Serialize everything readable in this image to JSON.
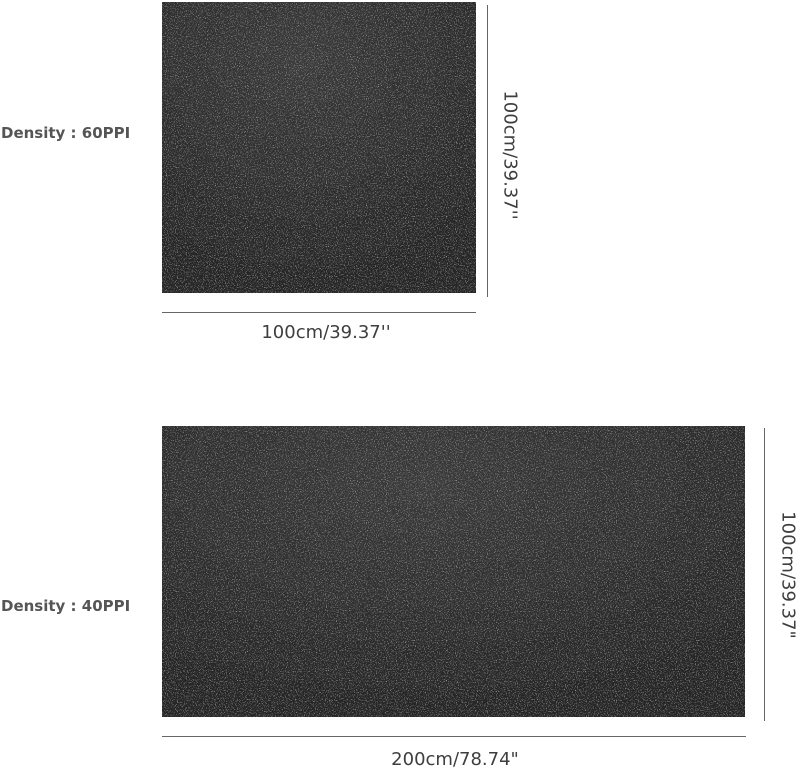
{
  "products": [
    {
      "density_label": "Density : 60PPI",
      "width_label": "100cm/39.37''",
      "height_label": "100cm/39.37''",
      "color": "#2e2e2e"
    },
    {
      "density_label": "Density : 40PPI",
      "width_label": "200cm/78.74\"",
      "height_label": "100cm/39.37\"",
      "color": "#2e2e2e"
    }
  ]
}
